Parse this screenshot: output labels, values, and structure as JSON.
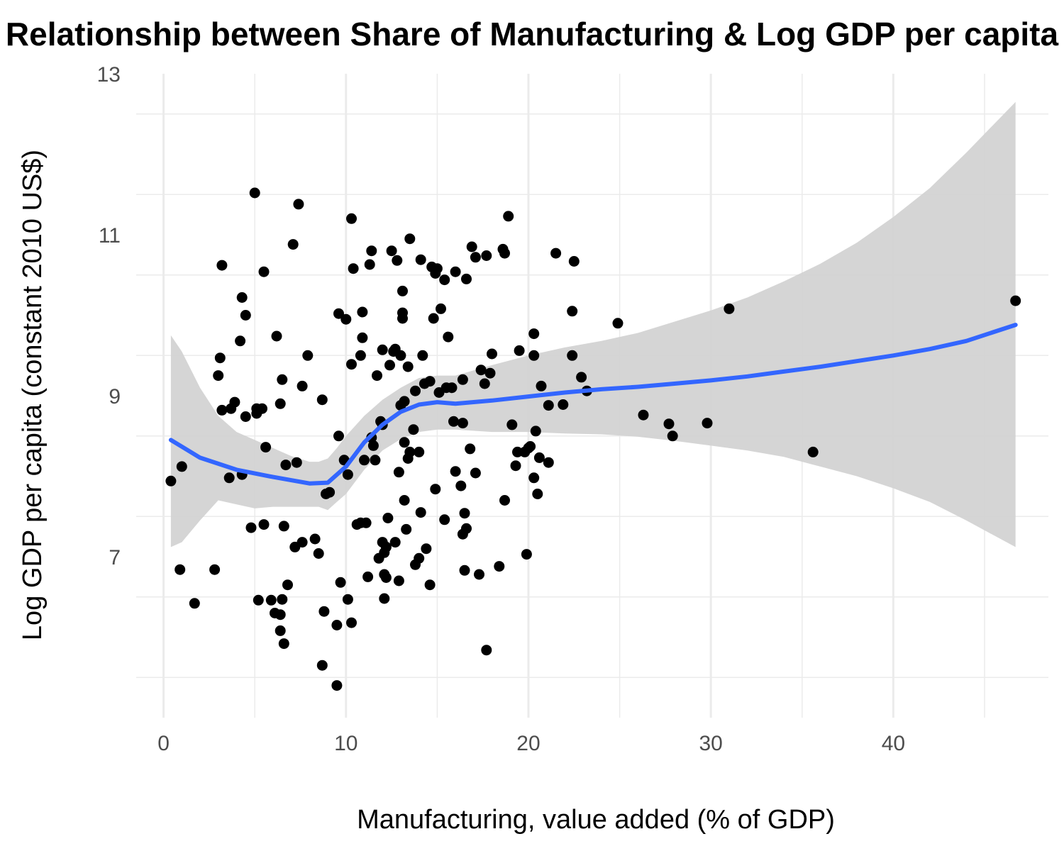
{
  "chart_data": {
    "type": "scatter",
    "title": "Relationship between Share of Manufacturing & Log GDP per capita",
    "xlabel": "Manufacturing, value added (% of GDP)",
    "ylabel": "Log GDP per capita (constant 2010 US$)",
    "xlim": [
      -1.5,
      48.5
    ],
    "ylim": [
      5.0,
      13.0
    ],
    "x_ticks": [
      0,
      10,
      20,
      30,
      40
    ],
    "y_ticks": [
      7,
      9,
      11,
      13
    ],
    "grid": true,
    "colors": {
      "points": "#000000",
      "smooth_line": "#3366ff",
      "confidence_band": "#d3d3d3"
    },
    "points": [
      [
        0.4,
        7.94
      ],
      [
        0.9,
        6.84
      ],
      [
        1.0,
        8.12
      ],
      [
        1.7,
        6.42
      ],
      [
        2.8,
        6.84
      ],
      [
        3.0,
        9.25
      ],
      [
        3.1,
        9.47
      ],
      [
        3.2,
        8.82
      ],
      [
        3.2,
        10.62
      ],
      [
        3.6,
        7.98
      ],
      [
        3.7,
        8.84
      ],
      [
        3.9,
        8.92
      ],
      [
        4.2,
        9.68
      ],
      [
        4.3,
        8.02
      ],
      [
        4.3,
        10.22
      ],
      [
        4.5,
        8.74
      ],
      [
        4.5,
        10.0
      ],
      [
        4.8,
        7.36
      ],
      [
        5.0,
        11.52
      ],
      [
        5.1,
        8.84
      ],
      [
        5.1,
        8.78
      ],
      [
        5.2,
        6.46
      ],
      [
        5.4,
        8.84
      ],
      [
        5.5,
        7.4
      ],
      [
        5.5,
        10.54
      ],
      [
        5.6,
        8.36
      ],
      [
        5.9,
        6.46
      ],
      [
        6.1,
        6.3
      ],
      [
        6.2,
        9.74
      ],
      [
        6.4,
        6.28
      ],
      [
        6.4,
        6.08
      ],
      [
        6.5,
        6.47
      ],
      [
        6.6,
        7.38
      ],
      [
        6.6,
        5.92
      ],
      [
        6.7,
        8.14
      ],
      [
        6.8,
        6.65
      ],
      [
        6.4,
        8.9
      ],
      [
        6.5,
        9.2
      ],
      [
        7.1,
        10.88
      ],
      [
        7.2,
        7.12
      ],
      [
        7.3,
        8.17
      ],
      [
        7.4,
        11.38
      ],
      [
        7.6,
        7.18
      ],
      [
        7.6,
        9.12
      ],
      [
        7.9,
        9.5
      ],
      [
        8.3,
        7.22
      ],
      [
        8.5,
        7.04
      ],
      [
        8.7,
        8.95
      ],
      [
        8.7,
        5.65
      ],
      [
        8.8,
        6.32
      ],
      [
        8.9,
        7.78
      ],
      [
        9.1,
        7.8
      ],
      [
        9.5,
        5.4
      ],
      [
        9.5,
        6.15
      ],
      [
        9.6,
        10.02
      ],
      [
        9.6,
        8.5
      ],
      [
        9.7,
        6.68
      ],
      [
        9.9,
        8.2
      ],
      [
        10.0,
        9.95
      ],
      [
        10.1,
        8.02
      ],
      [
        10.1,
        6.47
      ],
      [
        10.3,
        9.39
      ],
      [
        10.3,
        6.18
      ],
      [
        10.3,
        11.2
      ],
      [
        10.4,
        10.58
      ],
      [
        10.6,
        7.4
      ],
      [
        10.8,
        7.42
      ],
      [
        10.8,
        9.5
      ],
      [
        10.9,
        9.72
      ],
      [
        10.9,
        10.04
      ],
      [
        11.0,
        8.2
      ],
      [
        11.1,
        7.42
      ],
      [
        11.2,
        6.75
      ],
      [
        11.3,
        10.63
      ],
      [
        11.4,
        10.8
      ],
      [
        11.4,
        8.48
      ],
      [
        11.5,
        8.38
      ],
      [
        11.6,
        8.2
      ],
      [
        11.7,
        9.25
      ],
      [
        11.8,
        6.98
      ],
      [
        11.9,
        8.68
      ],
      [
        12.0,
        8.64
      ],
      [
        12.0,
        9.57
      ],
      [
        12.0,
        7.18
      ],
      [
        12.1,
        6.48
      ],
      [
        12.1,
        6.78
      ],
      [
        12.1,
        7.05
      ],
      [
        12.2,
        7.12
      ],
      [
        12.2,
        6.74
      ],
      [
        12.3,
        7.48
      ],
      [
        12.4,
        9.38
      ],
      [
        12.5,
        10.8
      ],
      [
        12.6,
        9.55
      ],
      [
        12.7,
        9.58
      ],
      [
        12.7,
        7.18
      ],
      [
        12.8,
        10.68
      ],
      [
        12.9,
        6.7
      ],
      [
        12.9,
        8.05
      ],
      [
        13.0,
        8.88
      ],
      [
        13.0,
        9.5
      ],
      [
        13.1,
        10.3
      ],
      [
        13.1,
        10.03
      ],
      [
        13.1,
        9.96
      ],
      [
        13.2,
        8.93
      ],
      [
        13.2,
        8.42
      ],
      [
        13.2,
        7.7
      ],
      [
        13.3,
        7.34
      ],
      [
        13.4,
        9.36
      ],
      [
        13.4,
        8.22
      ],
      [
        13.5,
        8.3
      ],
      [
        13.5,
        10.95
      ],
      [
        13.7,
        8.58
      ],
      [
        13.8,
        9.06
      ],
      [
        13.8,
        6.9
      ],
      [
        14.0,
        8.3
      ],
      [
        14.0,
        6.98
      ],
      [
        14.1,
        10.69
      ],
      [
        14.1,
        7.55
      ],
      [
        14.2,
        9.5
      ],
      [
        14.3,
        9.15
      ],
      [
        14.4,
        7.1
      ],
      [
        14.6,
        9.18
      ],
      [
        14.6,
        6.65
      ],
      [
        14.7,
        10.6
      ],
      [
        14.8,
        9.96
      ],
      [
        14.9,
        10.52
      ],
      [
        14.9,
        7.84
      ],
      [
        15.0,
        10.58
      ],
      [
        15.1,
        9.04
      ],
      [
        15.2,
        10.08
      ],
      [
        15.4,
        10.44
      ],
      [
        15.4,
        7.46
      ],
      [
        15.5,
        9.1
      ],
      [
        15.6,
        9.73
      ],
      [
        15.8,
        9.1
      ],
      [
        15.9,
        8.68
      ],
      [
        16.0,
        10.54
      ],
      [
        16.0,
        8.06
      ],
      [
        16.3,
        7.88
      ],
      [
        16.4,
        9.2
      ],
      [
        16.4,
        7.28
      ],
      [
        16.4,
        8.66
      ],
      [
        16.5,
        7.54
      ],
      [
        16.5,
        6.83
      ],
      [
        16.6,
        10.45
      ],
      [
        16.6,
        7.35
      ],
      [
        16.8,
        8.34
      ],
      [
        16.9,
        10.85
      ],
      [
        17.1,
        10.72
      ],
      [
        17.1,
        8.04
      ],
      [
        17.3,
        6.78
      ],
      [
        17.4,
        9.32
      ],
      [
        17.6,
        9.15
      ],
      [
        17.7,
        5.84
      ],
      [
        17.7,
        10.74
      ],
      [
        17.9,
        9.28
      ],
      [
        18.0,
        9.52
      ],
      [
        18.4,
        6.88
      ],
      [
        18.6,
        10.82
      ],
      [
        18.7,
        10.77
      ],
      [
        18.7,
        7.7
      ],
      [
        18.9,
        11.23
      ],
      [
        19.1,
        8.64
      ],
      [
        19.3,
        8.13
      ],
      [
        19.4,
        8.3
      ],
      [
        19.5,
        9.56
      ],
      [
        19.8,
        8.3
      ],
      [
        19.9,
        7.03
      ],
      [
        20.0,
        8.35
      ],
      [
        20.1,
        8.37
      ],
      [
        20.3,
        9.77
      ],
      [
        20.3,
        9.5
      ],
      [
        20.3,
        7.98
      ],
      [
        20.4,
        8.56
      ],
      [
        20.5,
        7.78
      ],
      [
        20.6,
        8.23
      ],
      [
        20.7,
        9.12
      ],
      [
        21.1,
        8.17
      ],
      [
        21.1,
        8.88
      ],
      [
        21.5,
        10.77
      ],
      [
        21.9,
        8.89
      ],
      [
        22.4,
        10.05
      ],
      [
        22.4,
        9.5
      ],
      [
        22.5,
        10.67
      ],
      [
        22.9,
        9.23
      ],
      [
        23.2,
        9.06
      ],
      [
        24.9,
        9.9
      ],
      [
        26.3,
        8.76
      ],
      [
        27.7,
        8.65
      ],
      [
        27.9,
        8.5
      ],
      [
        29.8,
        8.66
      ],
      [
        31.0,
        10.08
      ],
      [
        35.6,
        8.3
      ],
      [
        46.7,
        10.18
      ]
    ],
    "smooth_line": {
      "x": [
        0.4,
        2.0,
        4.0,
        6.0,
        8.0,
        9.0,
        10.0,
        11.0,
        12.0,
        13.0,
        14.0,
        15.0,
        16.0,
        18.0,
        20.0,
        22.0,
        24.0,
        26.0,
        28.0,
        30.0,
        32.0,
        34.0,
        36.0,
        38.0,
        40.0,
        42.0,
        44.0,
        46.7
      ],
      "y": [
        8.45,
        8.23,
        8.08,
        7.99,
        7.91,
        7.92,
        8.12,
        8.42,
        8.64,
        8.8,
        8.89,
        8.92,
        8.9,
        8.94,
        8.99,
        9.04,
        9.08,
        9.11,
        9.15,
        9.19,
        9.24,
        9.3,
        9.36,
        9.43,
        9.5,
        9.58,
        9.68,
        9.88
      ]
    },
    "confidence_band": {
      "x": [
        0.4,
        1.0,
        2.0,
        3.0,
        4.0,
        5.0,
        6.0,
        7.0,
        8.0,
        8.5,
        9.0,
        9.5,
        10.0,
        11.0,
        12.0,
        13.0,
        14.0,
        15.0,
        16.0,
        18.0,
        20.0,
        22.0,
        24.0,
        26.0,
        28.0,
        30.0,
        32.0,
        34.0,
        36.0,
        38.0,
        40.0,
        42.0,
        44.0,
        46.7
      ],
      "upper": [
        9.75,
        9.55,
        9.1,
        8.75,
        8.55,
        8.45,
        8.35,
        8.25,
        8.18,
        8.18,
        8.22,
        8.35,
        8.5,
        8.75,
        8.95,
        9.1,
        9.22,
        9.25,
        9.25,
        9.38,
        9.5,
        9.6,
        9.68,
        9.78,
        9.92,
        10.06,
        10.22,
        10.42,
        10.64,
        10.9,
        11.22,
        11.58,
        12.02,
        12.65
      ],
      "lower": [
        7.12,
        7.18,
        7.45,
        7.7,
        7.65,
        7.6,
        7.62,
        7.62,
        7.62,
        7.62,
        7.58,
        7.68,
        7.78,
        8.08,
        8.32,
        8.46,
        8.55,
        8.58,
        8.58,
        8.55,
        8.55,
        8.53,
        8.52,
        8.49,
        8.44,
        8.38,
        8.32,
        8.24,
        8.12,
        8.0,
        7.85,
        7.68,
        7.45,
        7.12
      ]
    }
  }
}
